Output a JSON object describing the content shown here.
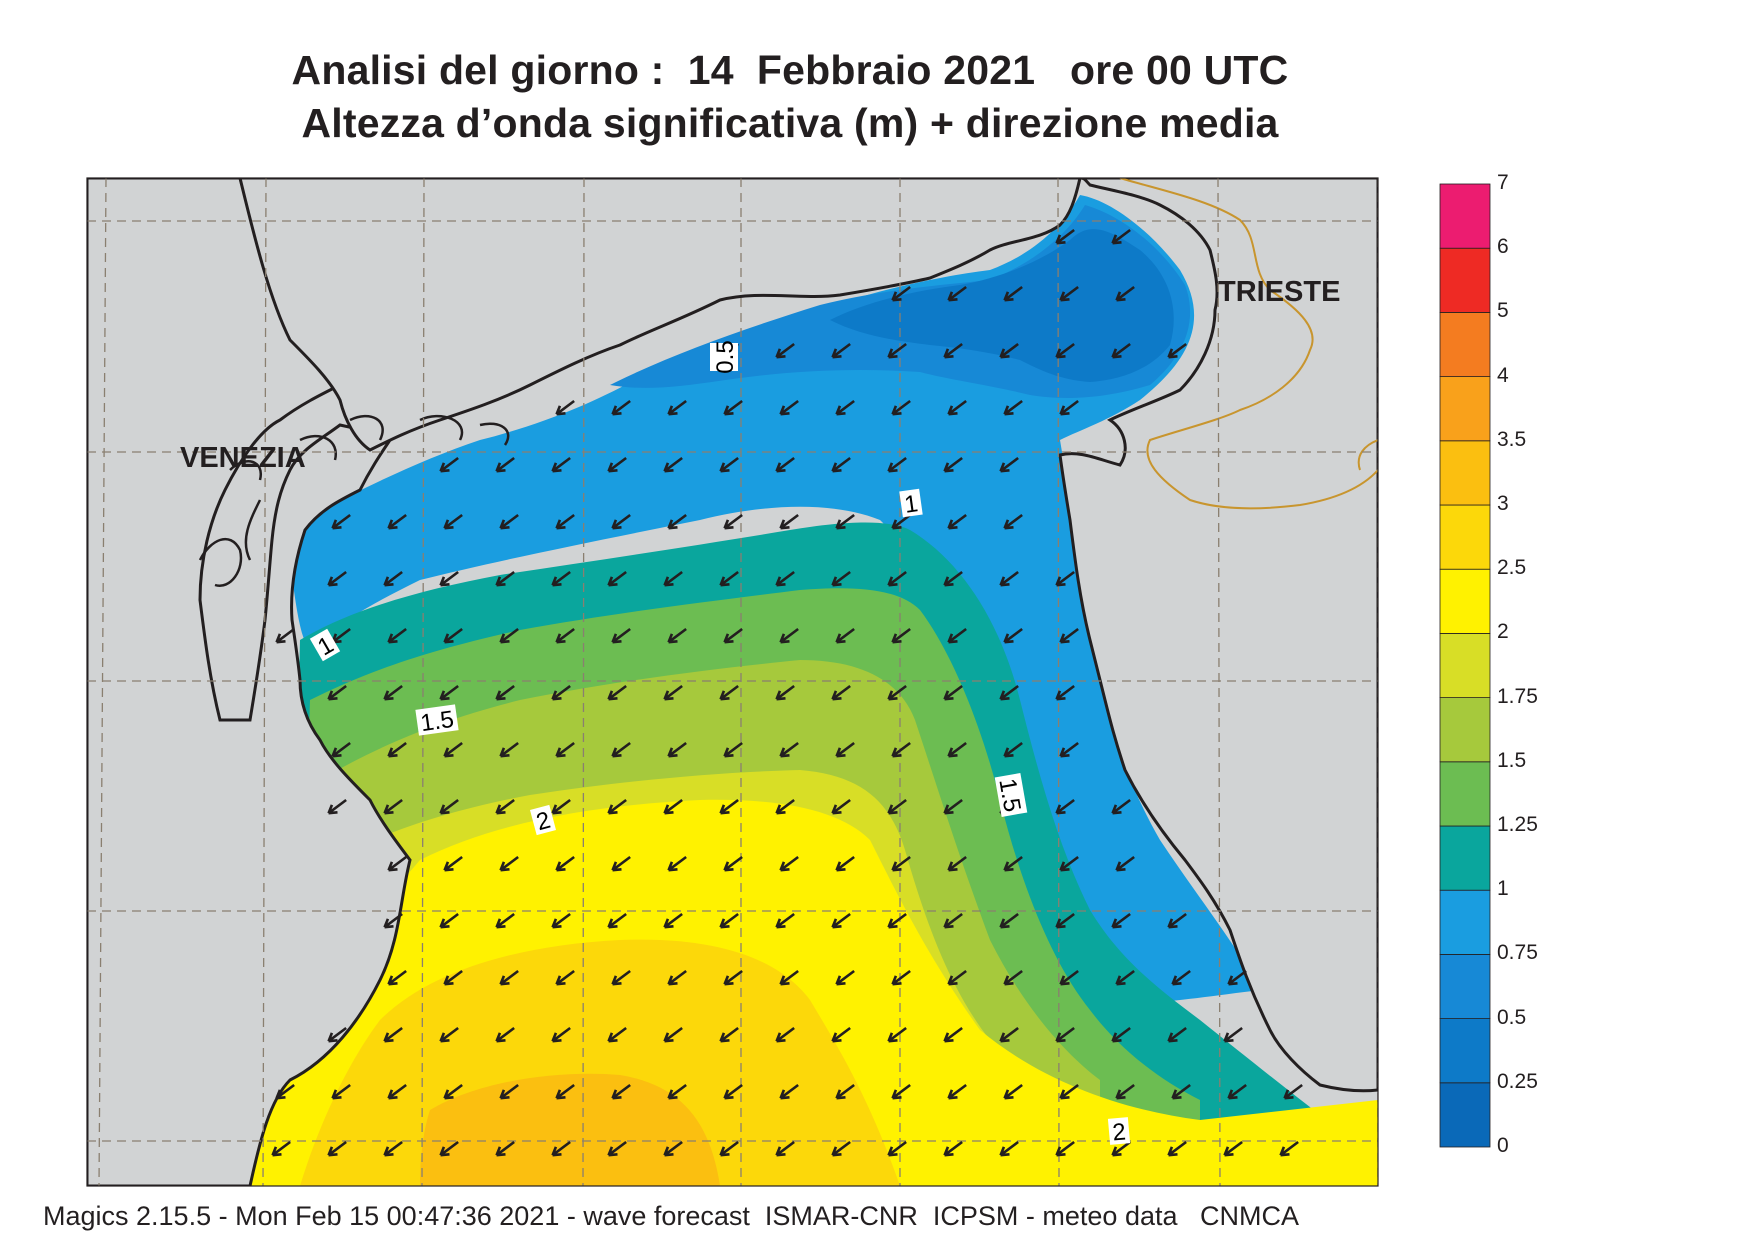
{
  "title_line1": "Analisi del giorno :  14  Febbraio 2021   ore 00 UTC",
  "title_line2": "Altezza d’onda significativa (m) + direzione media",
  "footer": "Magics 2.15.5 - Mon Feb 15 00:47:36 2021 - wave forecast  ISMAR-CNR  ICPSM - meteo data   CNMCA",
  "places": [
    {
      "name": "VENEZIA"
    },
    {
      "name": "TRIESTE"
    }
  ],
  "contour_labels": [
    "0.5",
    "1",
    "1",
    "1.5",
    "1.5",
    "2",
    "2"
  ],
  "colorbar": {
    "unit": "m",
    "levels": [
      "0",
      "0.25",
      "0.5",
      "0.75",
      "1",
      "1.25",
      "1.5",
      "1.75",
      "2",
      "2.5",
      "3",
      "3.5",
      "4",
      "5",
      "6",
      "7"
    ],
    "colors": [
      "#0a69b8",
      "#0d7ac8",
      "#1789d6",
      "#1a9de0",
      "#0aa69d",
      "#6cbd52",
      "#a6c93c",
      "#d8de26",
      "#fff200",
      "#fcd80a",
      "#fbbf10",
      "#f9a11b",
      "#f47c20",
      "#ee2a24",
      "#ec1c70"
    ]
  },
  "colors": {
    "land": "#d1d3d4",
    "coast": "#231f20",
    "border": "#c8952e",
    "grid": "#8a7f70",
    "arrow": "#231f20"
  },
  "wave_direction": "north-east to south-west"
}
